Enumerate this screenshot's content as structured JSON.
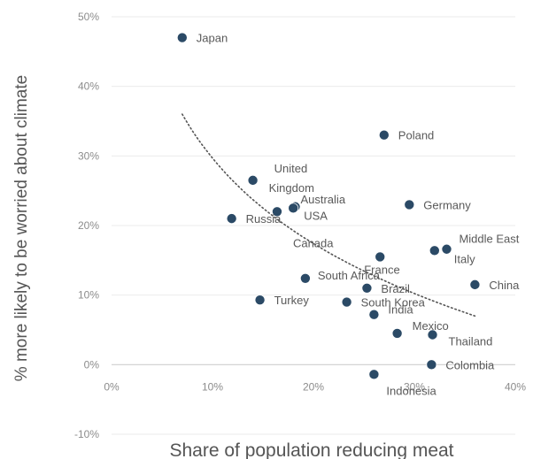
{
  "chart_data": {
    "type": "scatter",
    "title": "",
    "xlabel": "Share of population reducing meat",
    "ylabel": "% more likely to be worried about climate",
    "xlim": [
      0,
      0.4
    ],
    "ylim": [
      -0.1,
      0.5
    ],
    "x_ticks": [
      "0%",
      "10%",
      "20%",
      "30%",
      "40%"
    ],
    "y_ticks": [
      "-10%",
      "0%",
      "10%",
      "20%",
      "30%",
      "40%",
      "50%"
    ],
    "grid": "horizontal",
    "zero_line": true,
    "marker_color": "#2b4a66",
    "trendline": {
      "style": "dotted",
      "kind": "logarithmic",
      "from": [
        0.07,
        0.36
      ],
      "to": [
        0.36,
        0.07
      ],
      "color": "#555555"
    },
    "points": [
      {
        "label": "Japan",
        "x": 0.07,
        "y": 0.47
      },
      {
        "label": "Poland",
        "x": 0.27,
        "y": 0.33
      },
      {
        "label": "United Kingdom",
        "x": 0.14,
        "y": 0.265
      },
      {
        "label": "Australia",
        "x": 0.182,
        "y": 0.227
      },
      {
        "label": "USA",
        "x": 0.18,
        "y": 0.225
      },
      {
        "label": "Canada",
        "x": 0.164,
        "y": 0.22
      },
      {
        "label": "Russia",
        "x": 0.119,
        "y": 0.21
      },
      {
        "label": "Germany",
        "x": 0.295,
        "y": 0.23
      },
      {
        "label": "Middle East",
        "x": 0.332,
        "y": 0.166
      },
      {
        "label": "Italy",
        "x": 0.32,
        "y": 0.164
      },
      {
        "label": "France",
        "x": 0.266,
        "y": 0.155
      },
      {
        "label": "China",
        "x": 0.36,
        "y": 0.115
      },
      {
        "label": "South Africa",
        "x": 0.192,
        "y": 0.124
      },
      {
        "label": "Brazil",
        "x": 0.253,
        "y": 0.11
      },
      {
        "label": "Turkey",
        "x": 0.147,
        "y": 0.093
      },
      {
        "label": "South Korea",
        "x": 0.233,
        "y": 0.09
      },
      {
        "label": "India",
        "x": 0.26,
        "y": 0.072
      },
      {
        "label": "Mexico",
        "x": 0.283,
        "y": 0.045
      },
      {
        "label": "Thailand",
        "x": 0.318,
        "y": 0.043
      },
      {
        "label": "Colombia",
        "x": 0.317,
        "y": 0.0
      },
      {
        "label": "Indonesia",
        "x": 0.26,
        "y": -0.014
      }
    ]
  }
}
